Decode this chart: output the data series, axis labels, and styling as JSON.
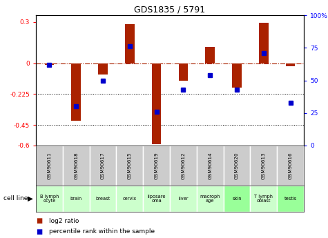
{
  "title": "GDS1835 / 5791",
  "samples": [
    "GSM90611",
    "GSM90618",
    "GSM90617",
    "GSM90615",
    "GSM90619",
    "GSM90612",
    "GSM90614",
    "GSM90620",
    "GSM90613",
    "GSM90616"
  ],
  "cell_lines": [
    "B lymph\nocyte",
    "brain",
    "breast",
    "cervix",
    "liposare\noma",
    "liver",
    "macroph\nage",
    "skin",
    "T lymph\noblast",
    "testis"
  ],
  "cell_colors": [
    "#ccffcc",
    "#ccffcc",
    "#ccffcc",
    "#ccffcc",
    "#ccffcc",
    "#ccffcc",
    "#ccffcc",
    "#99ff99",
    "#ccffcc",
    "#99ff99"
  ],
  "log2_ratio": [
    -0.01,
    -0.42,
    -0.08,
    0.285,
    -0.59,
    -0.13,
    0.12,
    -0.18,
    0.295,
    -0.02
  ],
  "percentile_rank": [
    62,
    30,
    50,
    76,
    26,
    43,
    54,
    43,
    71,
    33
  ],
  "ylim_left": [
    -0.6,
    0.35
  ],
  "ylim_right": [
    0,
    100
  ],
  "yticks_left": [
    -0.6,
    -0.45,
    -0.225,
    0.0,
    0.3
  ],
  "ytick_labels_left": [
    "-0.6",
    "-0.45",
    "-0.225",
    "0",
    "0.3"
  ],
  "ytick_labels_right": [
    "0",
    "25",
    "50",
    "75",
    "100%"
  ],
  "yticks_right": [
    0,
    25,
    50,
    75,
    100
  ],
  "bar_color": "#aa2200",
  "dot_color": "#0000cc",
  "dotted_lines": [
    -0.225,
    -0.45
  ],
  "bar_width": 0.35,
  "legend_red": "log2 ratio",
  "legend_blue": "percentile rank within the sample",
  "cell_line_label": "cell line",
  "sample_bg_color": "#cccccc",
  "fig_width": 4.75,
  "fig_height": 3.45,
  "dpi": 100
}
